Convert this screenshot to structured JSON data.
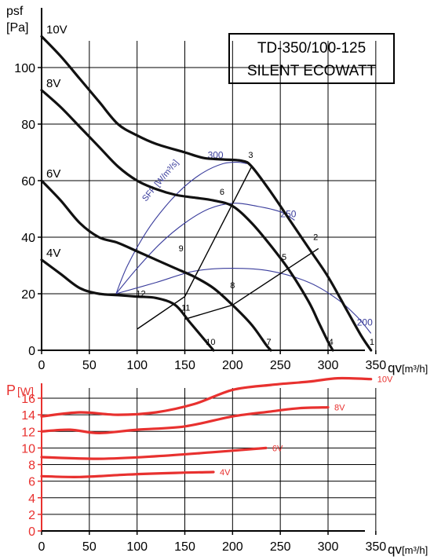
{
  "colors": {
    "axis": "#000000",
    "curve": "#111111",
    "sfp": "#3a3d9c",
    "power": "#e8312f",
    "power_axis": "#e8312f"
  },
  "chart_data": [
    {
      "type": "line",
      "title": "TD-350/100-125",
      "subtitle": "SILENT ECOWATT",
      "ylabel": "psf",
      "ylabel_unit": "[Pa]",
      "xlabel": "qv",
      "xlabel_unit": "[m³/h]",
      "xlim": [
        0,
        370
      ],
      "ylim": [
        0,
        120
      ],
      "xticks": [
        0,
        50,
        100,
        150,
        200,
        250,
        300,
        350
      ],
      "yticks": [
        0,
        20,
        40,
        60,
        80,
        100
      ],
      "grid": true,
      "series": [
        {
          "name": "10V",
          "x": [
            0,
            20,
            40,
            60,
            80,
            100,
            120,
            150,
            170,
            190,
            210,
            220,
            240,
            260,
            280,
            300,
            320,
            335,
            345
          ],
          "y": [
            111,
            104,
            96,
            88,
            80,
            76,
            73,
            70,
            68,
            67.5,
            67,
            65,
            56,
            46,
            36,
            26,
            14,
            5,
            0
          ]
        },
        {
          "name": "8V",
          "x": [
            0,
            20,
            40,
            60,
            80,
            100,
            120,
            140,
            160,
            180,
            200,
            220,
            240,
            260,
            280,
            290,
            300,
            305
          ],
          "y": [
            92,
            86,
            79,
            72,
            65,
            60,
            57,
            55,
            54,
            53,
            51,
            45,
            37,
            28,
            17,
            10,
            3,
            0
          ]
        },
        {
          "name": "6V",
          "x": [
            0,
            20,
            40,
            60,
            80,
            100,
            120,
            140,
            160,
            180,
            200,
            220,
            235,
            240
          ],
          "y": [
            60,
            53,
            45,
            40,
            38,
            35,
            32,
            29,
            26,
            22,
            16,
            9,
            2,
            0
          ]
        },
        {
          "name": "4V",
          "x": [
            0,
            20,
            40,
            60,
            80,
            100,
            120,
            140,
            155,
            170,
            180
          ],
          "y": [
            32,
            27,
            22,
            20,
            19.5,
            19,
            18.5,
            16,
            10,
            4,
            0
          ]
        }
      ],
      "sfp_curves": [
        {
          "label": "300",
          "x": [
            78,
            90,
            110,
            130,
            150,
            170,
            190,
            205,
            215
          ],
          "y": [
            20,
            30,
            42,
            51,
            58,
            63,
            66,
            66.5,
            66
          ]
        },
        {
          "label": "250",
          "x": [
            78,
            100,
            125,
            150,
            175,
            200,
            225,
            250,
            265
          ],
          "y": [
            20,
            29,
            38,
            45,
            50,
            52,
            51,
            49,
            46
          ]
        },
        {
          "label": "200",
          "x": [
            78,
            120,
            160,
            200,
            240,
            280,
            310,
            330,
            345
          ],
          "y": [
            20,
            24,
            28,
            29,
            28,
            24,
            18,
            12,
            6
          ]
        }
      ],
      "sfp_axis_label": "SFP [W/m³/s]",
      "system_lines": [
        {
          "x": [
            100,
            150,
            220
          ],
          "y": [
            7.5,
            19,
            65
          ]
        },
        {
          "x": [
            150,
            200,
            290
          ],
          "y": [
            11,
            16,
            36
          ]
        }
      ],
      "point_labels": [
        {
          "label": "1",
          "x": 346,
          "y": 2
        },
        {
          "label": "2",
          "x": 287,
          "y": 39
        },
        {
          "label": "3",
          "x": 219,
          "y": 68
        },
        {
          "label": "4",
          "x": 303,
          "y": 2
        },
        {
          "label": "5",
          "x": 254,
          "y": 32
        },
        {
          "label": "6",
          "x": 189,
          "y": 55
        },
        {
          "label": "7",
          "x": 238,
          "y": 2
        },
        {
          "label": "8",
          "x": 200,
          "y": 22
        },
        {
          "label": "9",
          "x": 146,
          "y": 35
        },
        {
          "label": "10",
          "x": 177,
          "y": 2
        },
        {
          "label": "11",
          "x": 151,
          "y": 14
        },
        {
          "label": "12",
          "x": 104,
          "y": 19
        }
      ]
    },
    {
      "type": "line",
      "ylabel": "P",
      "ylabel_unit": "[W]",
      "xlabel": "qv",
      "xlabel_unit": "[m³/h]",
      "xlim": [
        0,
        370
      ],
      "ylim": [
        0,
        18
      ],
      "xticks": [
        0,
        50,
        100,
        150,
        200,
        250,
        300,
        350
      ],
      "yticks": [
        0,
        2,
        4,
        6,
        8,
        10,
        12,
        14,
        16
      ],
      "grid": true,
      "series": [
        {
          "name": "10V",
          "x": [
            0,
            40,
            80,
            120,
            160,
            200,
            240,
            280,
            310,
            345
          ],
          "y": [
            13.8,
            14.3,
            14.0,
            14.3,
            15.3,
            17.0,
            17.6,
            18.0,
            18.4,
            18.3
          ]
        },
        {
          "name": "8V",
          "x": [
            0,
            30,
            60,
            100,
            150,
            200,
            240,
            270,
            300
          ],
          "y": [
            12.0,
            12.2,
            11.8,
            12.2,
            12.6,
            13.8,
            14.4,
            14.8,
            14.9
          ]
        },
        {
          "name": "6V",
          "x": [
            0,
            60,
            120,
            180,
            235
          ],
          "y": [
            8.9,
            8.7,
            9.0,
            9.5,
            10.0
          ]
        },
        {
          "name": "4V",
          "x": [
            0,
            40,
            90,
            140,
            180
          ],
          "y": [
            6.6,
            6.5,
            6.8,
            7.0,
            7.1
          ]
        }
      ]
    }
  ]
}
